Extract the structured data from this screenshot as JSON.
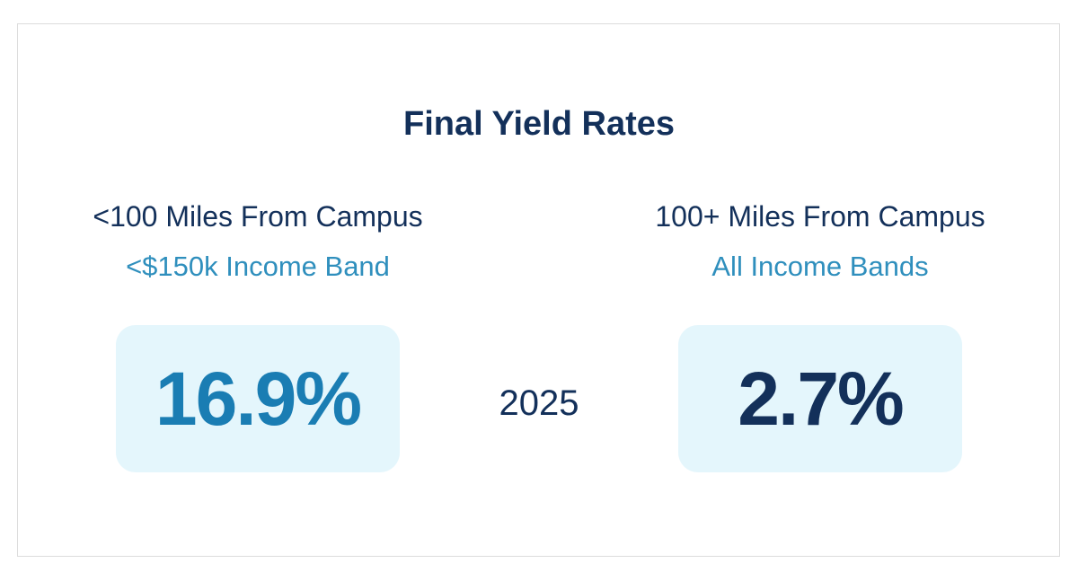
{
  "title": "Final Yield Rates",
  "left": {
    "heading": "<100 Miles From Campus",
    "subheading": "<$150k Income Band",
    "value": "16.9%"
  },
  "right": {
    "heading": "100+ Miles From Campus",
    "subheading": "All Income Bands",
    "value": "2.7%"
  },
  "year": "2025",
  "colors": {
    "navy": "#13305a",
    "accent_blue": "#1a7db3",
    "light_blue": "#2f8fbd",
    "box_bg": "#e4f6fc"
  }
}
